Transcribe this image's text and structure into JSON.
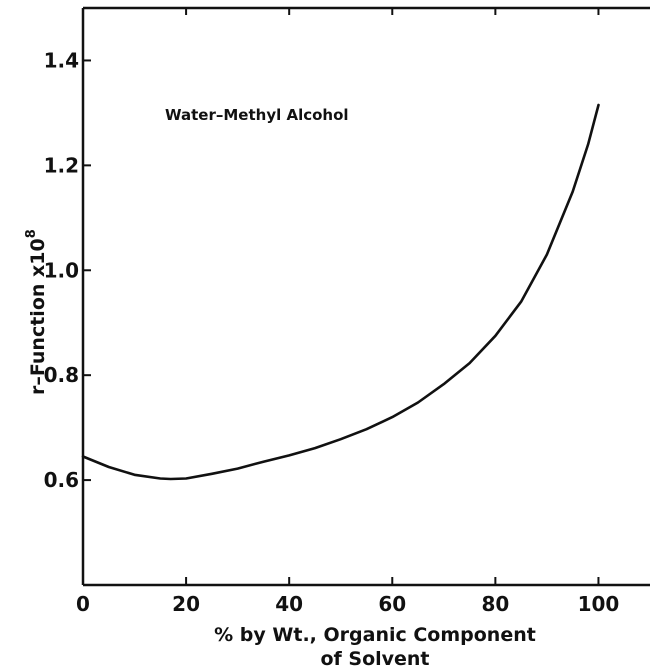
{
  "chart_data": {
    "type": "line",
    "title": "",
    "annotation": "Water–Methyl Alcohol",
    "xlabel_line1": "% by Wt., Organic Component",
    "xlabel_line2": "of Solvent",
    "ylabel_main": "r–Function",
    "ylabel_multiplier": "x10",
    "ylabel_exponent": "8",
    "xlim": [
      0,
      110
    ],
    "ylim": [
      0.4,
      1.5
    ],
    "xticks": [
      0,
      20,
      40,
      60,
      80,
      100
    ],
    "xtick_labels": [
      "0",
      "20",
      "40",
      "60",
      "80",
      "100"
    ],
    "yticks": [
      0.6,
      0.8,
      1.0,
      1.2,
      1.4
    ],
    "ytick_labels": [
      "0.6",
      "0.8",
      "1.0",
      "1.2",
      "1.4"
    ],
    "grid": false,
    "series": [
      {
        "x": [
          0,
          5,
          10,
          15,
          17,
          20,
          25,
          30,
          35,
          40,
          45,
          50,
          55,
          60,
          65,
          70,
          75,
          80,
          85,
          90,
          95,
          98,
          100
        ],
        "y": [
          0.645,
          0.625,
          0.61,
          0.603,
          0.602,
          0.603,
          0.612,
          0.622,
          0.635,
          0.647,
          0.661,
          0.678,
          0.697,
          0.72,
          0.748,
          0.783,
          0.823,
          0.875,
          0.94,
          1.03,
          1.15,
          1.24,
          1.315
        ]
      }
    ]
  }
}
